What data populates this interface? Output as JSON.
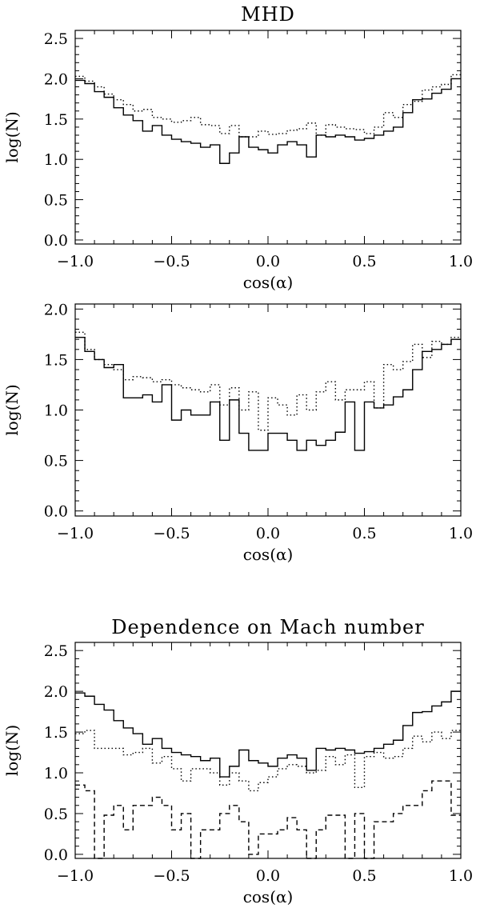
{
  "chart_data": [
    {
      "type": "line",
      "title": "MHD",
      "xlabel": "cos(α)",
      "ylabel": "log(N)",
      "xlim": [
        -1.0,
        1.0
      ],
      "ylim": [
        -0.05,
        2.6
      ],
      "xticks": [
        "−1.0",
        "−0.5",
        "0.0",
        "0.5",
        "1.0"
      ],
      "xtick_values": [
        -1.0,
        -0.5,
        0.0,
        0.5,
        1.0
      ],
      "yticks": [
        "0.0",
        "0.5",
        "1.0",
        "1.5",
        "2.0",
        "2.5"
      ],
      "ytick_values": [
        0.0,
        0.5,
        1.0,
        1.5,
        2.0,
        2.5
      ],
      "bin_edges": [
        -1.0,
        -0.95,
        -0.9,
        -0.85,
        -0.8,
        -0.75,
        -0.7,
        -0.65,
        -0.6,
        -0.55,
        -0.5,
        -0.45,
        -0.4,
        -0.35,
        -0.3,
        -0.25,
        -0.2,
        -0.15,
        -0.1,
        -0.05,
        0.0,
        0.05,
        0.1,
        0.15,
        0.2,
        0.25,
        0.3,
        0.35,
        0.4,
        0.45,
        0.5,
        0.55,
        0.6,
        0.65,
        0.7,
        0.75,
        0.8,
        0.85,
        0.9,
        0.95,
        1.0
      ],
      "series": [
        {
          "style": "solid",
          "values": [
            1.98,
            1.94,
            1.84,
            1.77,
            1.64,
            1.55,
            1.48,
            1.35,
            1.42,
            1.3,
            1.25,
            1.22,
            1.2,
            1.15,
            1.18,
            0.95,
            1.08,
            1.28,
            1.15,
            1.12,
            1.08,
            1.18,
            1.22,
            1.18,
            1.03,
            1.3,
            1.28,
            1.3,
            1.28,
            1.24,
            1.26,
            1.3,
            1.35,
            1.4,
            1.58,
            1.74,
            1.75,
            1.82,
            1.87,
            2.0
          ]
        },
        {
          "style": "dotted",
          "values": [
            2.03,
            1.97,
            1.9,
            1.81,
            1.74,
            1.68,
            1.6,
            1.62,
            1.52,
            1.5,
            1.46,
            1.48,
            1.52,
            1.43,
            1.42,
            1.32,
            1.42,
            1.28,
            1.28,
            1.35,
            1.31,
            1.32,
            1.36,
            1.38,
            1.45,
            1.3,
            1.43,
            1.4,
            1.38,
            1.37,
            1.32,
            1.4,
            1.58,
            1.52,
            1.68,
            1.72,
            1.86,
            1.9,
            1.93,
            2.05
          ]
        }
      ]
    },
    {
      "type": "line",
      "title": "",
      "xlabel": "cos(α)",
      "ylabel": "log(N)",
      "xlim": [
        -1.0,
        1.0
      ],
      "ylim": [
        -0.05,
        2.05
      ],
      "xticks": [
        "−1.0",
        "−0.5",
        "0.0",
        "0.5",
        "1.0"
      ],
      "xtick_values": [
        -1.0,
        -0.5,
        0.0,
        0.5,
        1.0
      ],
      "yticks": [
        "0.0",
        "0.5",
        "1.0",
        "1.5",
        "2.0"
      ],
      "ytick_values": [
        0.0,
        0.5,
        1.0,
        1.5,
        2.0
      ],
      "bin_edges": [
        -1.0,
        -0.95,
        -0.9,
        -0.85,
        -0.8,
        -0.75,
        -0.7,
        -0.65,
        -0.6,
        -0.55,
        -0.5,
        -0.45,
        -0.4,
        -0.35,
        -0.3,
        -0.25,
        -0.2,
        -0.15,
        -0.1,
        -0.05,
        0.0,
        0.05,
        0.1,
        0.15,
        0.2,
        0.25,
        0.3,
        0.35,
        0.4,
        0.45,
        0.5,
        0.55,
        0.6,
        0.65,
        0.7,
        0.75,
        0.8,
        0.85,
        0.9,
        0.95,
        1.0
      ],
      "series": [
        {
          "style": "solid",
          "values": [
            1.72,
            1.58,
            1.5,
            1.42,
            1.45,
            1.12,
            1.12,
            1.15,
            1.08,
            1.25,
            0.9,
            1.0,
            0.95,
            0.95,
            1.08,
            0.7,
            1.1,
            0.77,
            0.6,
            0.6,
            0.77,
            0.77,
            0.7,
            0.6,
            0.7,
            0.65,
            0.7,
            0.78,
            1.08,
            0.6,
            1.08,
            1.02,
            1.05,
            1.13,
            1.2,
            1.4,
            1.58,
            1.6,
            1.65,
            1.7
          ]
        },
        {
          "style": "dotted",
          "values": [
            1.77,
            1.6,
            1.5,
            1.45,
            1.4,
            1.3,
            1.33,
            1.32,
            1.28,
            1.3,
            1.25,
            1.22,
            1.2,
            1.18,
            1.25,
            1.05,
            1.22,
            1.0,
            1.18,
            0.8,
            1.12,
            1.05,
            0.95,
            1.15,
            1.0,
            1.18,
            1.28,
            1.1,
            1.2,
            1.2,
            1.28,
            1.02,
            1.45,
            1.4,
            1.48,
            1.65,
            1.52,
            1.68,
            1.65,
            1.72
          ]
        }
      ]
    },
    {
      "type": "line",
      "title": "Dependence on Mach number",
      "xlabel": "cos(α)",
      "ylabel": "log(N)",
      "xlim": [
        -1.0,
        1.0
      ],
      "ylim": [
        -0.05,
        2.6
      ],
      "xticks": [
        "−1.0",
        "−0.5",
        "0.0",
        "0.5",
        "1.0"
      ],
      "xtick_values": [
        -1.0,
        -0.5,
        0.0,
        0.5,
        1.0
      ],
      "yticks": [
        "0.0",
        "0.5",
        "1.0",
        "1.5",
        "2.0",
        "2.5"
      ],
      "ytick_values": [
        0.0,
        0.5,
        1.0,
        1.5,
        2.0,
        2.5
      ],
      "bin_edges": [
        -1.0,
        -0.95,
        -0.9,
        -0.85,
        -0.8,
        -0.75,
        -0.7,
        -0.65,
        -0.6,
        -0.55,
        -0.5,
        -0.45,
        -0.4,
        -0.35,
        -0.3,
        -0.25,
        -0.2,
        -0.15,
        -0.1,
        -0.05,
        0.0,
        0.05,
        0.1,
        0.15,
        0.2,
        0.25,
        0.3,
        0.35,
        0.4,
        0.45,
        0.5,
        0.55,
        0.6,
        0.65,
        0.7,
        0.75,
        0.8,
        0.85,
        0.9,
        0.95,
        1.0
      ],
      "series": [
        {
          "style": "solid",
          "values": [
            1.98,
            1.94,
            1.84,
            1.77,
            1.64,
            1.55,
            1.48,
            1.35,
            1.42,
            1.3,
            1.25,
            1.22,
            1.2,
            1.15,
            1.18,
            0.95,
            1.08,
            1.28,
            1.15,
            1.12,
            1.08,
            1.18,
            1.22,
            1.18,
            1.03,
            1.3,
            1.28,
            1.3,
            1.28,
            1.24,
            1.26,
            1.3,
            1.35,
            1.4,
            1.58,
            1.74,
            1.75,
            1.82,
            1.87,
            2.0
          ]
        },
        {
          "style": "dotted",
          "values": [
            1.48,
            1.52,
            1.3,
            1.3,
            1.3,
            1.22,
            1.25,
            1.3,
            1.12,
            1.2,
            1.05,
            0.9,
            1.05,
            1.05,
            1.0,
            0.85,
            1.0,
            0.9,
            0.78,
            0.88,
            0.95,
            1.05,
            1.1,
            1.08,
            1.0,
            1.03,
            1.2,
            1.1,
            1.22,
            0.82,
            1.2,
            1.25,
            1.18,
            1.2,
            1.3,
            1.45,
            1.38,
            1.5,
            1.42,
            1.52
          ]
        },
        {
          "style": "dashed",
          "values": [
            0.85,
            0.78,
            -0.05,
            0.48,
            0.6,
            0.3,
            0.6,
            0.6,
            0.7,
            0.6,
            0.3,
            0.5,
            -0.05,
            0.3,
            0.3,
            0.5,
            0.6,
            0.4,
            0.0,
            0.25,
            0.25,
            0.3,
            0.45,
            0.3,
            -0.05,
            0.3,
            0.48,
            0.48,
            -0.05,
            0.5,
            -0.05,
            0.4,
            0.4,
            0.5,
            0.6,
            0.6,
            0.78,
            0.9,
            0.9,
            0.48
          ]
        }
      ]
    }
  ]
}
